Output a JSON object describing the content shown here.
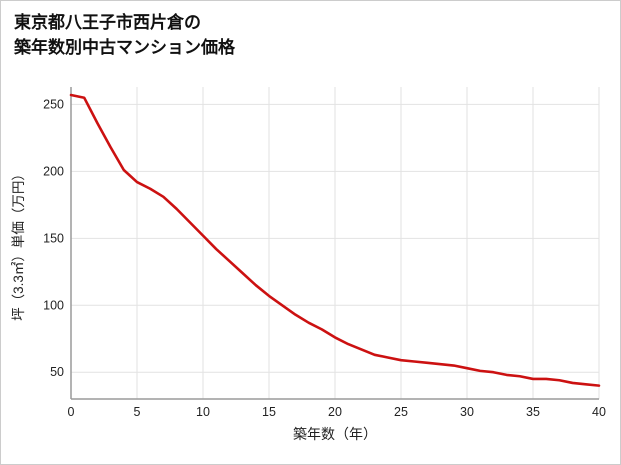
{
  "page": {
    "title_line1": "東京都八王子市西片倉の",
    "title_line2": "築年数別中古マンション価格"
  },
  "chart_data": {
    "type": "line",
    "title": "東京都八王子市西片倉の築年数別中古マンション価格",
    "xlabel": "築年数（年）",
    "ylabel": "坪（3.3㎡）単価（万円）",
    "x": [
      0,
      1,
      2,
      3,
      4,
      5,
      6,
      7,
      8,
      9,
      10,
      11,
      12,
      13,
      14,
      15,
      16,
      17,
      18,
      19,
      20,
      21,
      22,
      23,
      24,
      25,
      26,
      27,
      28,
      29,
      30,
      31,
      32,
      33,
      34,
      35,
      36,
      37,
      38,
      39,
      40
    ],
    "values": [
      257,
      255,
      236,
      218,
      201,
      192,
      187,
      181,
      172,
      162,
      152,
      142,
      133,
      124,
      115,
      107,
      100,
      93,
      87,
      82,
      76,
      71,
      67,
      63,
      61,
      59,
      58,
      57,
      56,
      55,
      53,
      51,
      50,
      48,
      47,
      45,
      45,
      44,
      42,
      41,
      40
    ],
    "series_name": "坪単価",
    "xlim": [
      0,
      40
    ],
    "ylim": [
      30,
      263
    ],
    "xticks": [
      0,
      5,
      10,
      15,
      20,
      25,
      30,
      35,
      40
    ],
    "yticks": [
      50,
      100,
      150,
      200,
      250
    ],
    "grid": true,
    "legend": "none",
    "colors": {
      "line": "#cc1111",
      "grid": "#e2e2e2",
      "axis": "#9a9a9a",
      "tick_label": "#222222",
      "axis_label": "#222222",
      "title": "#111111"
    }
  }
}
